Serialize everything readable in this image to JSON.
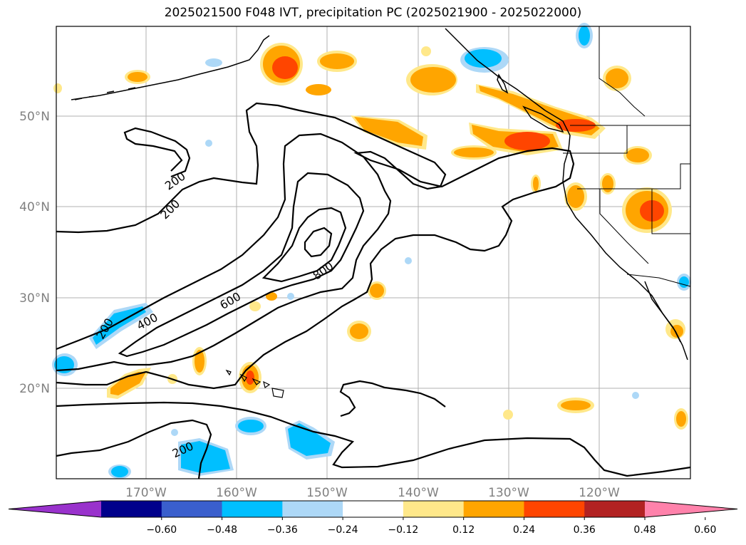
{
  "title": "2025021500 F048 IVT, precipitation PC (2025021900 - 2025022000)",
  "lat_labels": [
    "50°N",
    "40°N",
    "30°N",
    "20°N"
  ],
  "lon_labels": [
    "170°W",
    "160°W",
    "150°W",
    "140°W",
    "130°W",
    "120°W"
  ],
  "contour_labels": [
    "200",
    "200",
    "200",
    "200",
    "400",
    "600",
    "800"
  ],
  "colorbar": {
    "tick_labels": [
      "−0.60",
      "−0.48",
      "−0.36",
      "−0.24",
      "−0.12",
      "0.12",
      "0.24",
      "0.36",
      "0.48",
      "0.60"
    ],
    "colors": [
      "#9932cc",
      "#00008b",
      "#3a5fcd",
      "#00bfff",
      "#add8f7",
      "#ffffff",
      "#ffe88a",
      "#ffa500",
      "#ff4500",
      "#b22222",
      "#ff82ab"
    ]
  },
  "colors": {
    "land_outline": "#000000",
    "grid": "#b0b0b0",
    "ivt_contour": "#000000"
  }
}
